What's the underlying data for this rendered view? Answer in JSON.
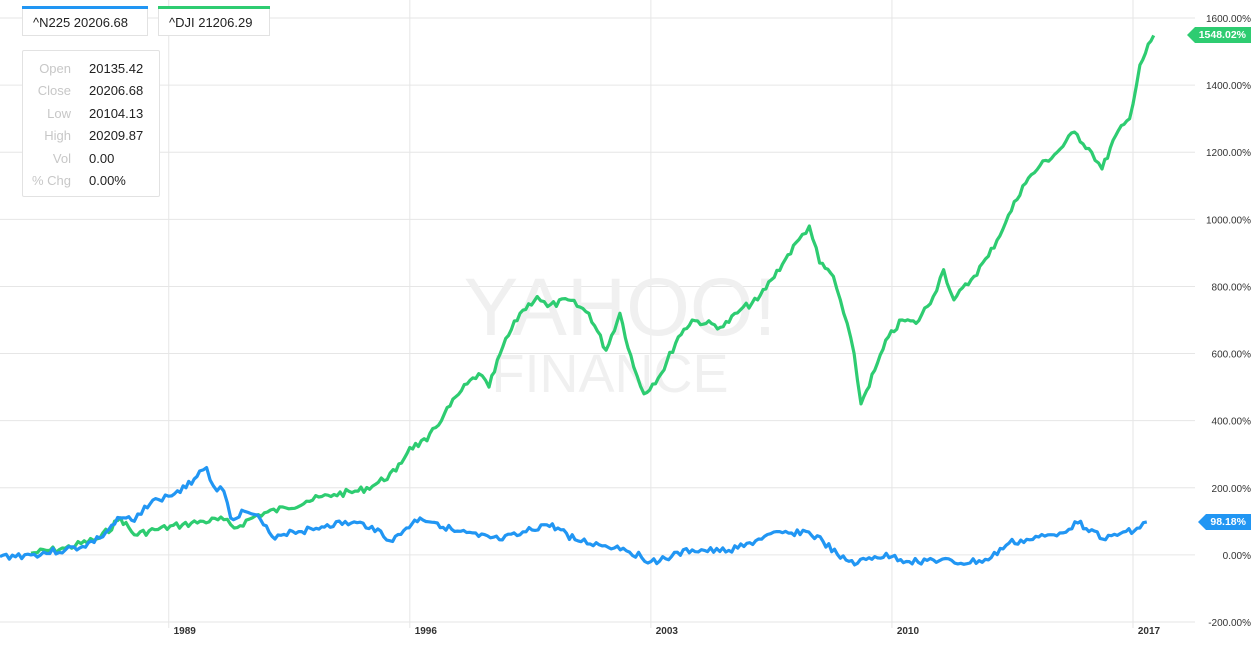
{
  "tabs": [
    {
      "label": "^N225 20206.68",
      "color": "#2196f3"
    },
    {
      "label": "^DJI 21206.29",
      "color": "#2ecc71"
    }
  ],
  "ohlc": [
    {
      "label": "Open",
      "value": "20135.42"
    },
    {
      "label": "Close",
      "value": "20206.68"
    },
    {
      "label": "Low",
      "value": "20104.13"
    },
    {
      "label": "High",
      "value": "20209.87"
    },
    {
      "label": "Vol",
      "value": "0.00"
    },
    {
      "label": "% Chg",
      "value": "0.00%"
    }
  ],
  "watermark": {
    "line1": "YAHOO!",
    "line2": "FINANCE"
  },
  "chart_data": {
    "type": "line",
    "x_ticks": [
      "1989",
      "1996",
      "2003",
      "2010",
      "2017"
    ],
    "x_tick_values": [
      1989,
      1996,
      2003,
      2010,
      2017
    ],
    "xlim": [
      1984.1,
      2018.8
    ],
    "y_ticks": [
      "1600.00%",
      "1400.00%",
      "1200.00%",
      "1000.00%",
      "800.00%",
      "600.00%",
      "400.00%",
      "200.00%",
      "0.00%",
      "-200.00%"
    ],
    "ylim": [
      -200,
      1600
    ],
    "grid": true,
    "series": [
      {
        "name": "^N225",
        "color": "#2196f3",
        "end_label": "98.18%",
        "points": [
          [
            1984.1,
            -5
          ],
          [
            1985,
            0
          ],
          [
            1986,
            15
          ],
          [
            1986.5,
            25
          ],
          [
            1987,
            50
          ],
          [
            1987.6,
            110
          ],
          [
            1988,
            100
          ],
          [
            1988.3,
            145
          ],
          [
            1988.7,
            165
          ],
          [
            1989,
            175
          ],
          [
            1989.5,
            200
          ],
          [
            1989.9,
            250
          ],
          [
            1990.1,
            260
          ],
          [
            1990.3,
            205
          ],
          [
            1990.6,
            190
          ],
          [
            1990.8,
            110
          ],
          [
            1991.2,
            130
          ],
          [
            1991.5,
            120
          ],
          [
            1992,
            55
          ],
          [
            1992.6,
            70
          ],
          [
            1993.2,
            75
          ],
          [
            1993.6,
            90
          ],
          [
            1994.3,
            95
          ],
          [
            1994.9,
            85
          ],
          [
            1995.5,
            40
          ],
          [
            1995.9,
            80
          ],
          [
            1996.3,
            110
          ],
          [
            1996.8,
            95
          ],
          [
            1997.3,
            70
          ],
          [
            1998,
            55
          ],
          [
            1998.6,
            45
          ],
          [
            1999.2,
            60
          ],
          [
            1999.9,
            90
          ],
          [
            2000.3,
            80
          ],
          [
            2000.8,
            45
          ],
          [
            2001.5,
            30
          ],
          [
            2002.2,
            20
          ],
          [
            2003,
            -20
          ],
          [
            2003.6,
            -5
          ],
          [
            2004.2,
            15
          ],
          [
            2005,
            10
          ],
          [
            2005.7,
            25
          ],
          [
            2006.3,
            55
          ],
          [
            2007,
            65
          ],
          [
            2007.5,
            70
          ],
          [
            2008,
            40
          ],
          [
            2008.5,
            -10
          ],
          [
            2009,
            -25
          ],
          [
            2009.5,
            -5
          ],
          [
            2010,
            -5
          ],
          [
            2010.5,
            -20
          ],
          [
            2011.2,
            -15
          ],
          [
            2012,
            -25
          ],
          [
            2012.8,
            -15
          ],
          [
            2013.4,
            35
          ],
          [
            2014,
            45
          ],
          [
            2014.7,
            60
          ],
          [
            2015.4,
            95
          ],
          [
            2015.8,
            75
          ],
          [
            2016.2,
            45
          ],
          [
            2016.8,
            70
          ],
          [
            2017.2,
            80
          ],
          [
            2017.4,
            98.18
          ]
        ]
      },
      {
        "name": "^DJI",
        "color": "#2ecc71",
        "end_label": "1548.02%",
        "points": [
          [
            1985,
            5
          ],
          [
            1986,
            20
          ],
          [
            1987,
            50
          ],
          [
            1987.6,
            110
          ],
          [
            1988,
            60
          ],
          [
            1988.6,
            75
          ],
          [
            1989.4,
            90
          ],
          [
            1990,
            100
          ],
          [
            1990.6,
            105
          ],
          [
            1990.9,
            80
          ],
          [
            1991.6,
            120
          ],
          [
            1992.4,
            140
          ],
          [
            1993,
            160
          ],
          [
            1993.8,
            180
          ],
          [
            1994.5,
            190
          ],
          [
            1995,
            210
          ],
          [
            1995.6,
            250
          ],
          [
            1996,
            320
          ],
          [
            1996.5,
            340
          ],
          [
            1997,
            420
          ],
          [
            1997.5,
            490
          ],
          [
            1998,
            540
          ],
          [
            1998.3,
            500
          ],
          [
            1998.7,
            620
          ],
          [
            1999.2,
            720
          ],
          [
            1999.7,
            770
          ],
          [
            2000,
            740
          ],
          [
            2000.6,
            760
          ],
          [
            2001.2,
            720
          ],
          [
            2001.7,
            610
          ],
          [
            2002.1,
            720
          ],
          [
            2002.5,
            560
          ],
          [
            2002.8,
            480
          ],
          [
            2003.3,
            540
          ],
          [
            2003.8,
            650
          ],
          [
            2004.2,
            700
          ],
          [
            2004.6,
            690
          ],
          [
            2005.1,
            680
          ],
          [
            2005.6,
            730
          ],
          [
            2006.1,
            760
          ],
          [
            2006.5,
            820
          ],
          [
            2006.9,
            880
          ],
          [
            2007.3,
            940
          ],
          [
            2007.6,
            980
          ],
          [
            2007.9,
            870
          ],
          [
            2008.3,
            830
          ],
          [
            2008.6,
            720
          ],
          [
            2008.9,
            600
          ],
          [
            2009.1,
            450
          ],
          [
            2009.5,
            550
          ],
          [
            2009.9,
            650
          ],
          [
            2010.3,
            700
          ],
          [
            2010.7,
            690
          ],
          [
            2011.2,
            770
          ],
          [
            2011.5,
            850
          ],
          [
            2011.8,
            760
          ],
          [
            2012.3,
            820
          ],
          [
            2012.8,
            890
          ],
          [
            2013.3,
            990
          ],
          [
            2013.8,
            1100
          ],
          [
            2014.3,
            1160
          ],
          [
            2014.8,
            1200
          ],
          [
            2015.3,
            1260
          ],
          [
            2015.8,
            1200
          ],
          [
            2016.1,
            1150
          ],
          [
            2016.5,
            1250
          ],
          [
            2016.9,
            1300
          ],
          [
            2017.2,
            1460
          ],
          [
            2017.6,
            1548.02
          ]
        ]
      }
    ]
  }
}
